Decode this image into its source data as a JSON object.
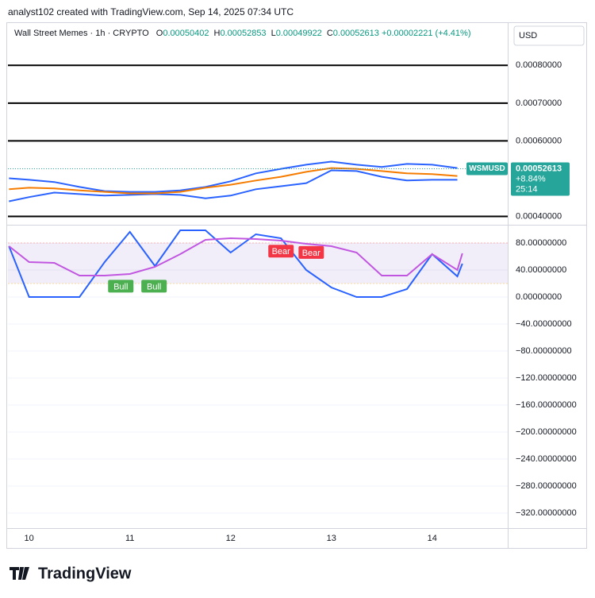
{
  "credit": "analyst102 created with TradingView.com, Sep 14, 2025 07:34 UTC",
  "symbol": "Wall Street Memes · 1h · CRYPTO",
  "ohlc": [
    {
      "label": "O",
      "value": "0.00050402"
    },
    {
      "label": "H",
      "value": "0.00052853"
    },
    {
      "label": "L",
      "value": "0.00049922"
    },
    {
      "label": "C",
      "value": "0.00052613"
    }
  ],
  "change": "+0.00002221 (+4.41%)",
  "currency": "USD",
  "brand": "TradingView",
  "chart_data": [
    {
      "type": "line",
      "x": [
        9.8,
        10,
        10.25,
        10.5,
        10.75,
        11,
        11.25,
        11.5,
        11.75,
        12,
        12.25,
        12.5,
        12.75,
        13,
        13.25,
        13.5,
        13.75,
        14,
        14.25
      ],
      "xlim": [
        9.79,
        14.75
      ],
      "ylim": [
        0.00038,
        0.00091
      ],
      "yticks": [
        {
          "value": 0.0004,
          "label": "0.00040000"
        },
        {
          "value": 0.0006,
          "label": "0.00060000"
        },
        {
          "value": 0.0007,
          "label": "0.00070000"
        },
        {
          "value": 0.0008,
          "label": "0.00080000"
        }
      ],
      "hlines": [
        0.0008,
        0.0007,
        0.0006,
        0.0004
      ],
      "series": [
        {
          "color": "#2962ff",
          "values": [
            0.000501,
            0.000497,
            0.000491,
            0.000478,
            0.000467,
            0.000465,
            0.000465,
            0.000469,
            0.000478,
            0.000493,
            0.000514,
            0.000526,
            0.000537,
            0.000545,
            0.000537,
            0.000531,
            0.000539,
            0.000537,
            0.000528
          ]
        },
        {
          "color": "#2962ff",
          "values": [
            0.00044,
            0.000451,
            0.000463,
            0.000459,
            0.000455,
            0.000457,
            0.000459,
            0.000457,
            0.000448,
            0.000455,
            0.000472,
            0.00048,
            0.000488,
            0.000522,
            0.00052,
            0.000505,
            0.000495,
            0.000497,
            0.000497
          ]
        },
        {
          "color": "#f57c00",
          "values": [
            0.000472,
            0.000476,
            0.000474,
            0.000469,
            0.000465,
            0.000461,
            0.000461,
            0.000465,
            0.000476,
            0.000484,
            0.000495,
            0.000505,
            0.000518,
            0.000528,
            0.000526,
            0.00052,
            0.000514,
            0.000512,
            0.000507
          ]
        }
      ],
      "last_price": {
        "label": "WSMUSD",
        "value": 0.00052613,
        "change": "+8.84%",
        "countdown": "25:14",
        "color": "#26a69a"
      }
    },
    {
      "type": "line",
      "x": [
        9.8,
        10,
        10.25,
        10.5,
        10.75,
        11,
        11.25,
        11.5,
        11.75,
        12,
        12.25,
        12.5,
        12.75,
        13,
        13.25,
        13.5,
        13.75,
        14,
        14.25,
        14.3
      ],
      "xlim": [
        9.79,
        14.75
      ],
      "xticks": [
        10,
        11,
        12,
        13,
        14
      ],
      "ylim": [
        -342.4,
        104.7
      ],
      "yticks": [
        {
          "value": 80,
          "label": "80.00000000"
        },
        {
          "value": 40,
          "label": "40.00000000"
        },
        {
          "value": 0,
          "label": "0.00000000"
        },
        {
          "value": -40,
          "label": "−40.00000000"
        },
        {
          "value": -80,
          "label": "−80.00000000"
        },
        {
          "value": -120,
          "label": "−120.00000000"
        },
        {
          "value": -160,
          "label": "−160.00000000"
        },
        {
          "value": -200,
          "label": "−200.00000000"
        },
        {
          "value": -240,
          "label": "−240.00000000"
        },
        {
          "value": -280,
          "label": "−280.00000000"
        },
        {
          "value": -320,
          "label": "−320.00000000"
        }
      ],
      "band": [
        20,
        80
      ],
      "series": [
        {
          "color": "#2962ff",
          "values": [
            75.3,
            0,
            0,
            0,
            51.8,
            96.5,
            45.9,
            98.8,
            98.8,
            65.9,
            92.9,
            87.1,
            40,
            14.1,
            0,
            0,
            11.8,
            63.5,
            30.6,
            49.4
          ]
        },
        {
          "color": "#c157e0",
          "values": [
            75.3,
            51.8,
            50.6,
            31.8,
            31.8,
            34.1,
            44.7,
            63.5,
            84.7,
            87.1,
            85.9,
            83.5,
            78.8,
            75.3,
            65.9,
            31.8,
            31.8,
            63.5,
            40,
            64.7
          ]
        }
      ],
      "annotations": [
        {
          "text": "Bull",
          "x": 10.91,
          "y": 16,
          "color": "#4caf50"
        },
        {
          "text": "Bull",
          "x": 11.24,
          "y": 16,
          "color": "#4caf50"
        },
        {
          "text": "Bear",
          "x": 12.5,
          "y": 68,
          "color": "#f23645"
        },
        {
          "text": "Bear",
          "x": 12.8,
          "y": 66,
          "color": "#f23645"
        }
      ]
    }
  ]
}
